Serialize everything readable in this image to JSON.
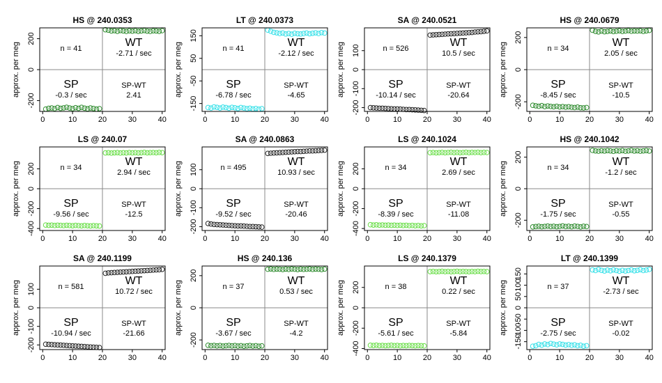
{
  "chart_data": [
    {
      "type": "scatter",
      "title": "HS @ 240.0353",
      "ylabel": "approx. per meg",
      "color": "#2e8b2e",
      "x": [
        1,
        2,
        3,
        4,
        5,
        6,
        7,
        8,
        9,
        10,
        11,
        12,
        13,
        14,
        15,
        16,
        17,
        18,
        19,
        21,
        22,
        23,
        24,
        25,
        26,
        27,
        28,
        29,
        30,
        31,
        32,
        33,
        34,
        35,
        36,
        37,
        38,
        39,
        40
      ],
      "values": [
        -255,
        -250,
        -248,
        -252,
        -245,
        -250,
        -247,
        -243,
        -248,
        -252,
        -246,
        -250,
        -244,
        -249,
        -253,
        -248,
        -251,
        -255,
        -252,
        258,
        255,
        250,
        252,
        248,
        253,
        250,
        247,
        251,
        249,
        252,
        248,
        250,
        253,
        249,
        247,
        251,
        250,
        248,
        252
      ],
      "xlim": [
        -1,
        41
      ],
      "xticks": [
        0,
        10,
        20,
        30,
        40
      ],
      "ylim": [
        -270,
        270
      ],
      "yticks": [
        -200,
        0,
        200
      ],
      "annotations": {
        "n": "n = 41",
        "wt_label": "WT",
        "wt_rate": "-2.71 / sec",
        "sp_label": "SP",
        "sp_rate": "-0.3 / sec",
        "diff_label": "SP-WT",
        "diff": "2.41"
      }
    },
    {
      "type": "scatter",
      "title": "LT @ 240.0373",
      "ylabel": "approx. per meg",
      "color": "#33e0e8",
      "x": [
        1,
        2,
        3,
        4,
        5,
        6,
        7,
        8,
        9,
        10,
        11,
        12,
        13,
        14,
        15,
        16,
        17,
        18,
        19,
        21,
        22,
        23,
        24,
        25,
        26,
        27,
        28,
        29,
        30,
        31,
        32,
        33,
        34,
        35,
        36,
        37,
        38,
        39,
        40
      ],
      "values": [
        -168,
        -170,
        -165,
        -167,
        -170,
        -166,
        -168,
        -171,
        -167,
        -169,
        -172,
        -168,
        -170,
        -173,
        -171,
        -174,
        -172,
        -175,
        -173,
        175,
        170,
        165,
        163,
        160,
        162,
        158,
        160,
        157,
        161,
        159,
        158,
        160,
        162,
        159,
        161,
        163,
        160,
        164,
        162
      ],
      "xlim": [
        -1,
        41
      ],
      "xticks": [
        0,
        10,
        20,
        30,
        40
      ],
      "ylim": [
        -185,
        185
      ],
      "yticks": [
        -150,
        -50,
        50,
        150
      ],
      "annotations": {
        "n": "n = 41",
        "wt_label": "WT",
        "wt_rate": "-2.12 / sec",
        "sp_label": "SP",
        "sp_rate": "-6.78 / sec",
        "diff_label": "SP-WT",
        "diff": "-4.65"
      }
    },
    {
      "type": "scatter",
      "title": "SA @ 240.0521",
      "ylabel": "approx. per meg",
      "color": "#222222",
      "x": [
        1,
        2,
        3,
        4,
        5,
        6,
        7,
        8,
        9,
        10,
        11,
        12,
        13,
        14,
        15,
        16,
        17,
        18,
        19,
        21,
        22,
        23,
        24,
        25,
        26,
        27,
        28,
        29,
        30,
        31,
        32,
        33,
        34,
        35,
        36,
        37,
        38,
        39,
        40
      ],
      "values": [
        -200,
        -201,
        -202,
        -203,
        -203,
        -204,
        -205,
        -206,
        -207,
        -207,
        -208,
        -209,
        -210,
        -210,
        -211,
        -212,
        -213,
        -214,
        -215,
        182,
        183,
        184,
        185,
        186,
        187,
        188,
        189,
        190,
        191,
        192,
        193,
        194,
        195,
        196,
        198,
        199,
        200,
        202,
        204
      ],
      "xlim": [
        -1,
        41
      ],
      "xticks": [
        0,
        10,
        20,
        30,
        40
      ],
      "ylim": [
        -220,
        220
      ],
      "yticks": [
        -200,
        -100,
        0,
        100
      ],
      "annotations": {
        "n": "n = 526",
        "wt_label": "WT",
        "wt_rate": "10.5 / sec",
        "sp_label": "SP",
        "sp_rate": "-10.14 / sec",
        "diff_label": "SP-WT",
        "diff": "-20.64"
      }
    },
    {
      "type": "scatter",
      "title": "HS @ 240.0679",
      "ylabel": "approx. per meg",
      "color": "#2e8b2e",
      "x": [
        1,
        2,
        3,
        4,
        5,
        6,
        7,
        8,
        9,
        10,
        11,
        12,
        13,
        14,
        15,
        16,
        17,
        18,
        19,
        21,
        22,
        23,
        24,
        25,
        26,
        27,
        28,
        29,
        30,
        31,
        32,
        33,
        34,
        35,
        36,
        37,
        38,
        39,
        40
      ],
      "values": [
        -222,
        -225,
        -228,
        -224,
        -230,
        -226,
        -229,
        -231,
        -228,
        -232,
        -230,
        -233,
        -231,
        -234,
        -236,
        -233,
        -237,
        -238,
        -236,
        245,
        238,
        235,
        240,
        236,
        238,
        241,
        237,
        239,
        242,
        238,
        240,
        243,
        239,
        241,
        240,
        242,
        238,
        241,
        244
      ],
      "xlim": [
        -1,
        41
      ],
      "xticks": [
        0,
        10,
        20,
        30,
        40
      ],
      "ylim": [
        -260,
        260
      ],
      "yticks": [
        -200,
        0,
        200
      ],
      "annotations": {
        "n": "n = 34",
        "wt_label": "WT",
        "wt_rate": "2.05 / sec",
        "sp_label": "SP",
        "sp_rate": "-8.45 / sec",
        "diff_label": "SP-WT",
        "diff": "-10.5"
      }
    },
    {
      "type": "scatter",
      "title": "LS @ 240.07",
      "ylabel": "approx. per meg",
      "color": "#66dd44",
      "x": [
        1,
        2,
        3,
        4,
        5,
        6,
        7,
        8,
        9,
        10,
        11,
        12,
        13,
        14,
        15,
        16,
        17,
        18,
        19,
        21,
        22,
        23,
        24,
        25,
        26,
        27,
        28,
        29,
        30,
        31,
        32,
        33,
        34,
        35,
        36,
        37,
        38,
        39,
        40
      ],
      "values": [
        -365,
        -368,
        -366,
        -370,
        -367,
        -369,
        -371,
        -368,
        -370,
        -372,
        -369,
        -371,
        -373,
        -370,
        -372,
        -374,
        -371,
        -373,
        -375,
        360,
        362,
        358,
        361,
        363,
        359,
        362,
        360,
        364,
        361,
        363,
        360,
        362,
        365,
        361,
        363,
        364,
        362,
        365,
        363
      ],
      "xlim": [
        -1,
        41
      ],
      "xticks": [
        0,
        10,
        20,
        30,
        40
      ],
      "ylim": [
        -420,
        420
      ],
      "yticks": [
        -400,
        -200,
        0,
        200
      ],
      "annotations": {
        "n": "n = 34",
        "wt_label": "WT",
        "wt_rate": "2.94 / sec",
        "sp_label": "SP",
        "sp_rate": "-9.56 / sec",
        "diff_label": "SP-WT",
        "diff": "-12.5"
      }
    },
    {
      "type": "scatter",
      "title": "SA @ 240.0863",
      "ylabel": "approx. per meg",
      "color": "#222222",
      "x": [
        1,
        2,
        3,
        4,
        5,
        6,
        7,
        8,
        9,
        10,
        11,
        12,
        13,
        14,
        15,
        16,
        17,
        18,
        19,
        21,
        22,
        23,
        24,
        25,
        26,
        27,
        28,
        29,
        30,
        31,
        32,
        33,
        34,
        35,
        36,
        37,
        38,
        39,
        40
      ],
      "values": [
        -183,
        -186,
        -188,
        -189,
        -190,
        -191,
        -192,
        -193,
        -194,
        -195,
        -196,
        -196,
        -197,
        -198,
        -199,
        -199,
        -200,
        -201,
        -202,
        186,
        187,
        188,
        189,
        190,
        191,
        192,
        193,
        194,
        195,
        196,
        196,
        197,
        198,
        199,
        199,
        200,
        201,
        202,
        203
      ],
      "xlim": [
        -1,
        41
      ],
      "xticks": [
        0,
        10,
        20,
        30,
        40
      ],
      "ylim": [
        -220,
        220
      ],
      "yticks": [
        -200,
        -100,
        0,
        100
      ],
      "annotations": {
        "n": "n = 495",
        "wt_label": "WT",
        "wt_rate": "10.93 / sec",
        "sp_label": "SP",
        "sp_rate": "-9.52 / sec",
        "diff_label": "SP-WT",
        "diff": "-20.46"
      }
    },
    {
      "type": "scatter",
      "title": "LS @ 240.1024",
      "ylabel": "approx. per meg",
      "color": "#66dd44",
      "x": [
        1,
        2,
        3,
        4,
        5,
        6,
        7,
        8,
        9,
        10,
        11,
        12,
        13,
        14,
        15,
        16,
        17,
        18,
        19,
        21,
        22,
        23,
        24,
        25,
        26,
        27,
        28,
        29,
        30,
        31,
        32,
        33,
        34,
        35,
        36,
        37,
        38,
        39,
        40
      ],
      "values": [
        -362,
        -365,
        -363,
        -366,
        -364,
        -367,
        -365,
        -368,
        -366,
        -369,
        -367,
        -370,
        -368,
        -371,
        -369,
        -372,
        -370,
        -373,
        -371,
        362,
        364,
        361,
        363,
        365,
        362,
        364,
        366,
        363,
        365,
        362,
        364,
        366,
        363,
        365,
        364,
        366,
        363,
        365,
        364
      ],
      "xlim": [
        -1,
        41
      ],
      "xticks": [
        0,
        10,
        20,
        30,
        40
      ],
      "ylim": [
        -420,
        420
      ],
      "yticks": [
        -400,
        -200,
        0,
        200
      ],
      "annotations": {
        "n": "n = 34",
        "wt_label": "WT",
        "wt_rate": "2.69 / sec",
        "sp_label": "SP",
        "sp_rate": "-8.39 / sec",
        "diff_label": "SP-WT",
        "diff": "-11.08"
      }
    },
    {
      "type": "scatter",
      "title": "HS @ 240.1042",
      "ylabel": "approx. per meg",
      "color": "#2e8b2e",
      "x": [
        1,
        2,
        3,
        4,
        5,
        6,
        7,
        8,
        9,
        10,
        11,
        12,
        13,
        14,
        15,
        16,
        17,
        18,
        19,
        21,
        22,
        23,
        24,
        25,
        26,
        27,
        28,
        29,
        30,
        31,
        32,
        33,
        34,
        35,
        36,
        37,
        38,
        39,
        40
      ],
      "values": [
        -242,
        -240,
        -238,
        -241,
        -239,
        -237,
        -240,
        -238,
        -241,
        -239,
        -236,
        -240,
        -238,
        -241,
        -237,
        -239,
        -242,
        -238,
        -240,
        243,
        240,
        238,
        241,
        239,
        242,
        240,
        237,
        241,
        239,
        242,
        238,
        240,
        243,
        239,
        241,
        238,
        240,
        242,
        239
      ],
      "xlim": [
        -1,
        41
      ],
      "xticks": [
        0,
        10,
        20,
        30,
        40
      ],
      "ylim": [
        -265,
        265
      ],
      "yticks": [
        -200,
        0,
        200
      ],
      "annotations": {
        "n": "n = 34",
        "wt_label": "WT",
        "wt_rate": "-1.2 / sec",
        "sp_label": "SP",
        "sp_rate": "-1.75 / sec",
        "diff_label": "SP-WT",
        "diff": "-0.55"
      }
    },
    {
      "type": "scatter",
      "title": "SA @ 240.1199",
      "ylabel": "approx. per meg",
      "color": "#222222",
      "x": [
        1,
        2,
        3,
        4,
        5,
        6,
        7,
        8,
        9,
        10,
        11,
        12,
        13,
        14,
        15,
        16,
        17,
        18,
        19,
        21,
        22,
        23,
        24,
        25,
        26,
        27,
        28,
        29,
        30,
        31,
        32,
        33,
        34,
        35,
        36,
        37,
        38,
        39,
        40
      ],
      "values": [
        -196,
        -197,
        -198,
        -199,
        -200,
        -201,
        -202,
        -203,
        -204,
        -205,
        -206,
        -207,
        -208,
        -209,
        -210,
        -211,
        -212,
        -213,
        -214,
        186,
        188,
        189,
        190,
        191,
        192,
        193,
        194,
        195,
        196,
        197,
        198,
        199,
        200,
        201,
        202,
        203,
        204,
        205,
        207
      ],
      "xlim": [
        -1,
        41
      ],
      "xticks": [
        0,
        10,
        20,
        30,
        40
      ],
      "ylim": [
        -225,
        225
      ],
      "yticks": [
        -200,
        -100,
        0,
        100
      ],
      "annotations": {
        "n": "n = 581",
        "wt_label": "WT",
        "wt_rate": "10.72 / sec",
        "sp_label": "SP",
        "sp_rate": "-10.94 / sec",
        "diff_label": "SP-WT",
        "diff": "-21.66"
      }
    },
    {
      "type": "scatter",
      "title": "HS @ 240.136",
      "ylabel": "approx. per meg",
      "color": "#2e8b2e",
      "x": [
        1,
        2,
        3,
        4,
        5,
        6,
        7,
        8,
        9,
        10,
        11,
        12,
        13,
        14,
        15,
        16,
        17,
        18,
        19,
        21,
        22,
        23,
        24,
        25,
        26,
        27,
        28,
        29,
        30,
        31,
        32,
        33,
        34,
        35,
        36,
        37,
        38,
        39,
        40
      ],
      "values": [
        -233,
        -236,
        -234,
        -237,
        -235,
        -238,
        -236,
        -234,
        -237,
        -235,
        -238,
        -236,
        -239,
        -237,
        -235,
        -238,
        -236,
        -239,
        -237,
        240,
        242,
        239,
        241,
        240,
        238,
        241,
        239,
        242,
        240,
        238,
        241,
        239,
        240,
        242,
        239,
        241,
        240,
        238,
        241
      ],
      "xlim": [
        -1,
        41
      ],
      "xticks": [
        0,
        10,
        20,
        30,
        40
      ],
      "ylim": [
        -260,
        260
      ],
      "yticks": [
        -200,
        0,
        200
      ],
      "annotations": {
        "n": "n = 37",
        "wt_label": "WT",
        "wt_rate": "0.53 / sec",
        "sp_label": "SP",
        "sp_rate": "-3.67 / sec",
        "diff_label": "SP-WT",
        "diff": "-4.2"
      }
    },
    {
      "type": "scatter",
      "title": "LS @ 240.1379",
      "ylabel": "approx. per meg",
      "color": "#66dd44",
      "x": [
        1,
        2,
        3,
        4,
        5,
        6,
        7,
        8,
        9,
        10,
        11,
        12,
        13,
        14,
        15,
        16,
        17,
        18,
        19,
        21,
        22,
        23,
        24,
        25,
        26,
        27,
        28,
        29,
        30,
        31,
        32,
        33,
        34,
        35,
        36,
        37,
        38,
        39,
        40
      ],
      "values": [
        -368,
        -370,
        -367,
        -371,
        -369,
        -372,
        -370,
        -368,
        -371,
        -369,
        -373,
        -370,
        -372,
        -369,
        -371,
        -373,
        -370,
        -372,
        -374,
        355,
        357,
        354,
        356,
        358,
        355,
        357,
        354,
        356,
        358,
        355,
        357,
        356,
        354,
        357,
        355,
        358,
        356,
        357,
        355
      ],
      "xlim": [
        -1,
        41
      ],
      "xticks": [
        0,
        10,
        20,
        30,
        40
      ],
      "ylim": [
        -410,
        410
      ],
      "yticks": [
        -400,
        -200,
        0,
        200
      ],
      "annotations": {
        "n": "n = 38",
        "wt_label": "WT",
        "wt_rate": "0.22 / sec",
        "sp_label": "SP",
        "sp_rate": "-5.61 / sec",
        "diff_label": "SP-WT",
        "diff": "-5.84"
      }
    },
    {
      "type": "scatter",
      "title": "LT @ 240.1399",
      "ylabel": "approx. per meg",
      "color": "#33e0e8",
      "x": [
        1,
        2,
        3,
        4,
        5,
        6,
        7,
        8,
        9,
        10,
        11,
        12,
        13,
        14,
        15,
        16,
        17,
        18,
        19,
        21,
        22,
        23,
        24,
        25,
        26,
        27,
        28,
        29,
        30,
        31,
        32,
        33,
        34,
        35,
        36,
        37,
        38,
        39,
        40
      ],
      "values": [
        -170,
        -168,
        -162,
        -165,
        -160,
        -163,
        -158,
        -161,
        -164,
        -160,
        -162,
        -165,
        -163,
        -166,
        -164,
        -168,
        -166,
        -170,
        -168,
        168,
        165,
        170,
        166,
        163,
        167,
        164,
        168,
        165,
        162,
        166,
        163,
        165,
        168,
        164,
        166,
        169,
        165,
        167,
        170
      ],
      "xlim": [
        -1,
        41
      ],
      "xticks": [
        0,
        10,
        20,
        30,
        40
      ],
      "ylim": [
        -185,
        185
      ],
      "yticks": [
        -150,
        -100,
        -50,
        0,
        50,
        100,
        150
      ],
      "annotations": {
        "n": "n = 37",
        "wt_label": "WT",
        "wt_rate": "-2.73 / sec",
        "sp_label": "SP",
        "sp_rate": "-2.75 / sec",
        "diff_label": "SP-WT",
        "diff": "-0.02"
      }
    }
  ]
}
